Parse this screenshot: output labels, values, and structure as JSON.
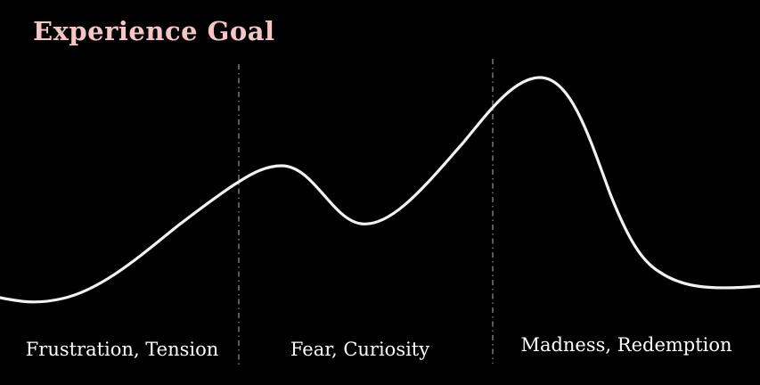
{
  "title": "Experience Goal",
  "sections": [
    {
      "label": "Frustration, Tension"
    },
    {
      "label": "Fear, Curiosity"
    },
    {
      "label": "Madness, Redemption"
    }
  ],
  "colors": {
    "background": "#000000",
    "title": "#f4c6c6",
    "curve": "#f2f2f2",
    "divider": "#8a8a8a",
    "label": "#ffffff"
  }
}
